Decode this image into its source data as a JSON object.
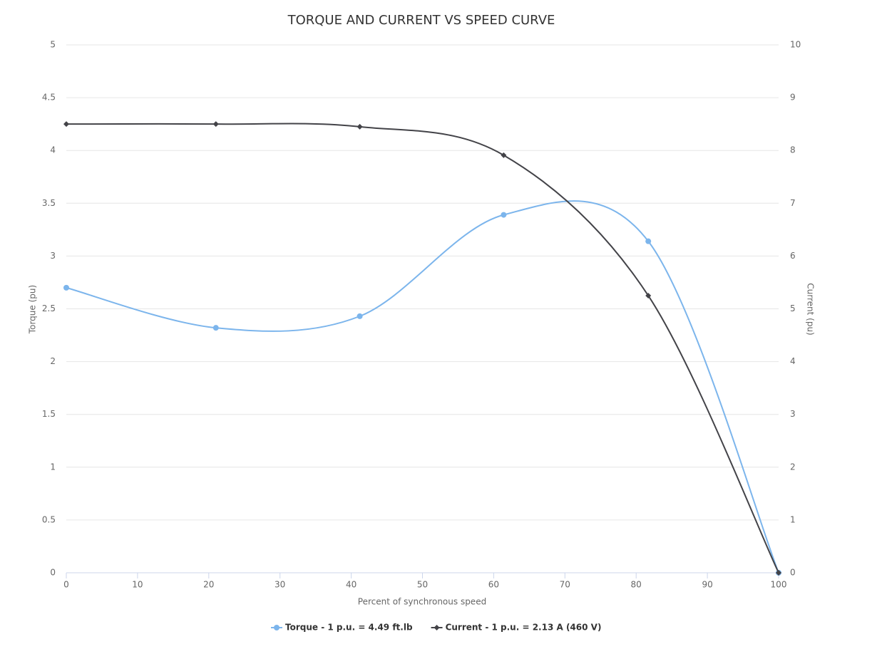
{
  "chart_data": {
    "type": "line",
    "title": "TORQUE AND CURRENT VS SPEED CURVE",
    "x_label": "Percent of synchronous speed",
    "y_label": "Torque (pu)",
    "y2_label": "Current (pu)",
    "x": [
      0,
      21,
      41.2,
      61.4,
      81.7,
      100
    ],
    "series": [
      {
        "name": "Torque - 1 p.u. = 4.49 ft.lb",
        "color": "#7cb5ec",
        "marker": "circle",
        "values": [
          2.7,
          2.32,
          2.43,
          3.39,
          3.14,
          0
        ]
      },
      {
        "name": "Current - 1 p.u. = 2.13 A (460 V)",
        "color": "#434348",
        "marker": "diamond",
        "axis": "y2",
        "values": [
          8.5,
          8.5,
          8.45,
          7.91,
          5.25,
          0
        ]
      }
    ],
    "xlim": [
      0,
      100
    ],
    "xticks": [
      0,
      10,
      20,
      30,
      40,
      50,
      60,
      70,
      80,
      90,
      100
    ],
    "ylim": [
      0,
      5
    ],
    "yticks": [
      0,
      0.5,
      1,
      1.5,
      2,
      2.5,
      3,
      3.5,
      4,
      4.5,
      5
    ],
    "y2lim": [
      0,
      10
    ],
    "y2ticks": [
      0,
      1,
      2,
      3,
      4,
      5,
      6,
      7,
      8,
      9,
      10
    ],
    "grid": true,
    "smooth": true,
    "legend": "bottom"
  }
}
